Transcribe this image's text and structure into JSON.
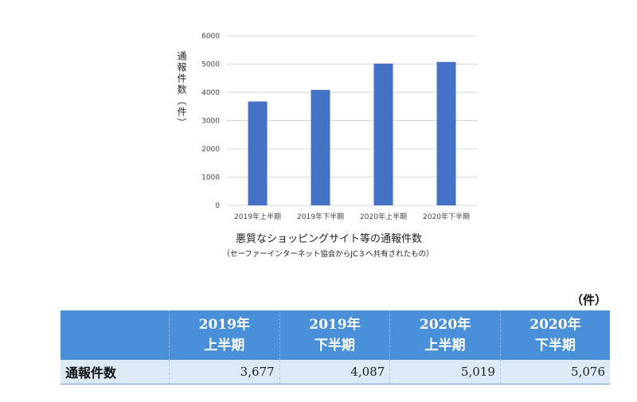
{
  "chart_data": {
    "type": "bar",
    "categories": [
      "2019年上半期",
      "2019年下半期",
      "2020年上半期",
      "2020年下半期"
    ],
    "values": [
      3677,
      4087,
      5019,
      5076
    ],
    "ylabel": "通報件数（件）",
    "xlabel": "",
    "ylim": [
      0,
      6000
    ],
    "yticks": [
      0,
      1000,
      2000,
      3000,
      4000,
      5000,
      6000
    ],
    "grid": true,
    "bar_color": "#4472c4",
    "caption": "悪質なショッピングサイト等の通報件数",
    "source_note": "（セーファーインターネット協会からJC３へ共有されたもの）"
  },
  "table": {
    "unit": "（件）",
    "headers": [
      {
        "year": "",
        "half": ""
      },
      {
        "year": "2019年",
        "half": "上半期"
      },
      {
        "year": "2019年",
        "half": "下半期"
      },
      {
        "year": "2020年",
        "half": "上半期"
      },
      {
        "year": "2020年",
        "half": "下半期"
      }
    ],
    "row_label": "通報件数",
    "row_values": [
      "3,677",
      "4,087",
      "5,019",
      "5,076"
    ]
  },
  "colors": {
    "header_bg": "#4a90d9",
    "row_bg": "#dce9f7",
    "bar": "#4472c4"
  }
}
